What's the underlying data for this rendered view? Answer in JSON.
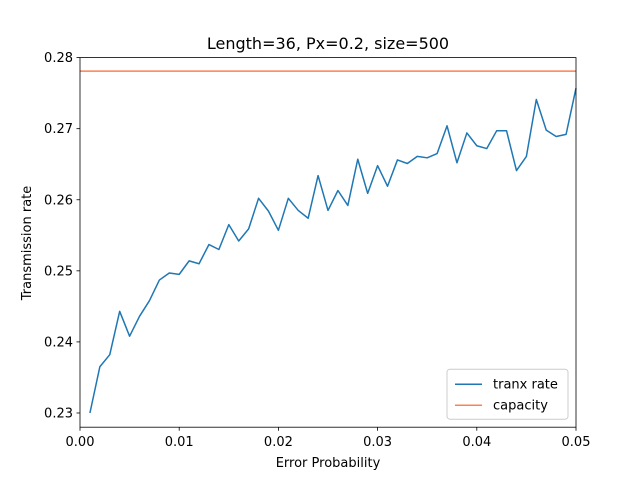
{
  "chart_data": {
    "type": "line",
    "title": "Length=36, Px=0.2, size=500",
    "xlabel": "Error Probability",
    "ylabel": "Transmission rate",
    "xlim": [
      0.0,
      0.05
    ],
    "ylim": [
      0.228,
      0.28
    ],
    "x_ticks": [
      "0.00",
      "0.01",
      "0.02",
      "0.03",
      "0.04",
      "0.05"
    ],
    "y_ticks": [
      "0.23",
      "0.24",
      "0.25",
      "0.26",
      "0.27",
      "0.28"
    ],
    "grid": false,
    "legend_position": "lower-right",
    "series": [
      {
        "name": "tranx rate",
        "color": "#1f77b4",
        "x": [
          0.001,
          0.002,
          0.003,
          0.004,
          0.005,
          0.006,
          0.007,
          0.008,
          0.009,
          0.01,
          0.011,
          0.012,
          0.013,
          0.014,
          0.015,
          0.016,
          0.017,
          0.018,
          0.019,
          0.02,
          0.021,
          0.022,
          0.023,
          0.024,
          0.025,
          0.026,
          0.027,
          0.028,
          0.029,
          0.03,
          0.031,
          0.032,
          0.033,
          0.034,
          0.035,
          0.036,
          0.037,
          0.038,
          0.039,
          0.04,
          0.041,
          0.042,
          0.043,
          0.044,
          0.045,
          0.046,
          0.047,
          0.048,
          0.049,
          0.05
        ],
        "y": [
          0.23,
          0.2365,
          0.2382,
          0.2443,
          0.2408,
          0.2436,
          0.2458,
          0.2487,
          0.2497,
          0.2495,
          0.2514,
          0.251,
          0.2537,
          0.253,
          0.2565,
          0.2542,
          0.2559,
          0.2602,
          0.2584,
          0.2557,
          0.2602,
          0.2585,
          0.2574,
          0.2634,
          0.2585,
          0.2613,
          0.2592,
          0.2657,
          0.2609,
          0.2648,
          0.2619,
          0.2656,
          0.2651,
          0.2661,
          0.2659,
          0.2665,
          0.2704,
          0.2652,
          0.2694,
          0.2676,
          0.2672,
          0.2697,
          0.2697,
          0.2641,
          0.2661,
          0.2741,
          0.2698,
          0.2689,
          0.2692,
          0.2757
        ]
      },
      {
        "name": "capacity",
        "color": "#ff7f50",
        "x": [
          0.0,
          0.05
        ],
        "y": [
          0.2781,
          0.2781
        ]
      }
    ]
  }
}
